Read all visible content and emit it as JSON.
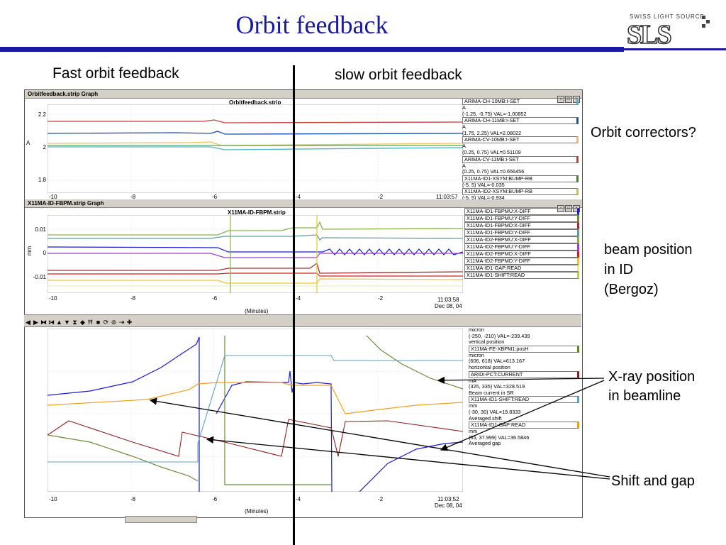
{
  "slide": {
    "title": "Orbit feedback",
    "logo_small": "SWISS LIGHT SOURCE",
    "logo_big": "SLS",
    "left_heading": "Fast orbit feedback",
    "right_heading": "slow orbit feedback",
    "annotations": {
      "orbit_correctors": "Orbit correctors?",
      "beam_position": [
        "beam position",
        "in ID",
        "(Bergoz)"
      ],
      "xray_position": [
        "X-ray position",
        "in beamline"
      ],
      "shift_gap": "Shift and gap"
    }
  },
  "window1": {
    "title": "Orbitfeedback.strip Graph",
    "plot_title": "Orbitfeedback.strip",
    "ylabel": "A",
    "yticks": [
      "2.2",
      "2",
      "1.8"
    ],
    "xticks": [
      "-10",
      "-8",
      "-6",
      "-4",
      "-2"
    ],
    "time": "11:03:57",
    "legend": [
      {
        "label": "ARIMA-CH-10MB:I-SET",
        "color": "#49b6c4",
        "units": "A",
        "range": "(-1.25, -0.75) VAL=-1.00852"
      },
      {
        "label": "ARIMA-CH-11MB:I-SET",
        "color": "#1f4fa8",
        "units": "A",
        "range": "(1.75, 2.25) VAL=2.08022"
      },
      {
        "label": "ARIMA-CV-10MB:I-SET",
        "color": "#f0c060",
        "units": "A",
        "range": "(0.25, 0.75) VAL=0.51109"
      },
      {
        "label": "ARIMA-CV-11MB:I-SET",
        "color": "#c84040",
        "units": "A",
        "range": "(0.25, 0.75) VAL=0.656456"
      },
      {
        "label": "X11MA-ID1-XSYM:BUMP-RB",
        "color": "#2e8b2e",
        "units": "",
        "range": "(-5, 5)  VAL=-0.035"
      },
      {
        "label": "X11MA-ID2-XSYM:BUMP-RB",
        "color": "#c8c840",
        "units": "",
        "range": "(-5, 5)  VAL=-0.934"
      }
    ]
  },
  "window2": {
    "title": "X11MA-ID-FBPM.strip Graph",
    "plot_title": "X11MA-ID-FBPM.strip",
    "ylabel": "mm",
    "yticks": [
      "0.01",
      "0",
      "-0.01"
    ],
    "xticks": [
      "-10",
      "-8",
      "-6",
      "-4",
      "-2"
    ],
    "time": "11:03:58",
    "date": "Dec 08, 04",
    "xlabel": "(Minutes)",
    "legend": [
      {
        "label": "X11MA-ID1-FBPMU:X-DIFF",
        "color": "#1a1ad0"
      },
      {
        "label": "X11MA-ID1-FBPMU:Y-DIFF",
        "color": "#6a8c3a"
      },
      {
        "label": "X11MA-ID1-FBPMD:X-DIFF",
        "color": "#a03030"
      },
      {
        "label": "X11MA-ID1-FBPMD:Y-DIFF",
        "color": "#5aa0a0"
      },
      {
        "label": "X11MA-ID2-FBPMU:X-DIFF",
        "color": "#8ab04a"
      },
      {
        "label": "X11MA-ID2-FBPMU:Y-DIFF",
        "color": "#9a40c8"
      },
      {
        "label": "X11MA-ID2-FBPMD:X-DIFF",
        "color": "#d02020"
      },
      {
        "label": "X11MA-ID2-FBPMD:Y-DIFF",
        "color": "#f0c040"
      },
      {
        "label": "X11MA-ID1-GAP:READ",
        "color": "#e8e8a0"
      },
      {
        "label": "X11MA-ID1-SHIFT:READ",
        "color": "#c8c860"
      }
    ]
  },
  "window3": {
    "xticks": [
      "-10",
      "-8",
      "-6",
      "-4",
      "-2"
    ],
    "time": "11:03:52",
    "date": "Dec 08, 04",
    "xlabel": "(Minutes)",
    "legend_top": [
      "micron",
      "(-250, -210) VAL=-239.439",
      "vertical position"
    ],
    "legend": [
      {
        "label": "X11MA-FE-XBPM1:posH",
        "color": "#5a8a2a",
        "lines": [
          "micron",
          "(606, 618) VAL=613.167",
          "horizontal position"
        ]
      },
      {
        "label": "ARIDI-PCT:CURRENT",
        "color": "#8a2020",
        "lines": [
          "mA",
          "(325, 335) VAL=328.519",
          "Beam current in SR"
        ]
      },
      {
        "label": "X11MA-ID1-SHIFT:READ",
        "color": "#60a0c0",
        "lines": [
          "mm",
          "(-30, 30) VAL=19.8333",
          "Averaged shift"
        ]
      },
      {
        "label": "X11MA-ID1-GAP:READ",
        "color": "#f0a020",
        "lines": [
          "mm",
          "(35, 37.999) VAL=36.5846",
          "Averaged gap"
        ]
      }
    ]
  },
  "colors": {
    "title_blue": "#1a1aa0",
    "window_chrome": "#d4d0c8"
  }
}
